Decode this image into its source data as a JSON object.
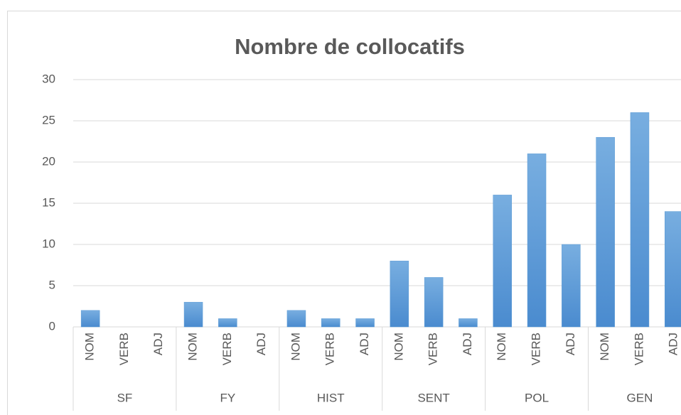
{
  "chart_data": {
    "type": "bar",
    "title": "Nombre de collocatifs",
    "categories": [
      "NOM",
      "VERB",
      "ADJ",
      "NOM",
      "VERB",
      "ADJ",
      "NOM",
      "VERB",
      "ADJ",
      "NOM",
      "VERB",
      "ADJ",
      "NOM",
      "VERB",
      "ADJ",
      "NOM",
      "VERB",
      "ADJ"
    ],
    "groups": [
      "SF",
      "FY",
      "HIST",
      "SENT",
      "POL",
      "GEN"
    ],
    "values": [
      2,
      0,
      0,
      3,
      1,
      0,
      2,
      1,
      1,
      8,
      6,
      1,
      16,
      21,
      10,
      23,
      26,
      14
    ],
    "color": "#5b9bd5",
    "ylim": [
      0,
      30
    ],
    "yticks": [
      0,
      5,
      10,
      15,
      20,
      25,
      30
    ],
    "grid": true
  }
}
